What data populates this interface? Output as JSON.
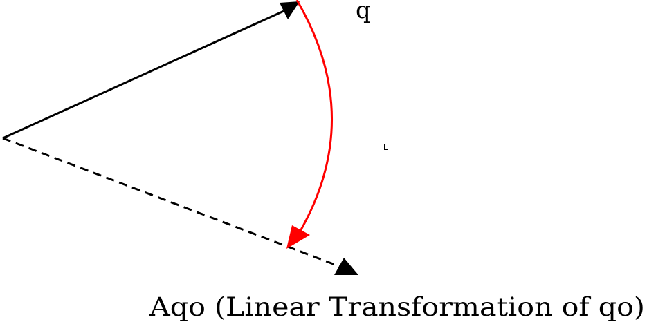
{
  "labels": {
    "q_vector": "q",
    "transformed_vector": "Aqo (Linear Transformation of qo)"
  },
  "colors": {
    "vector": "#000000",
    "rotation_arc": "#ff0000",
    "background": "#ffffff"
  }
}
